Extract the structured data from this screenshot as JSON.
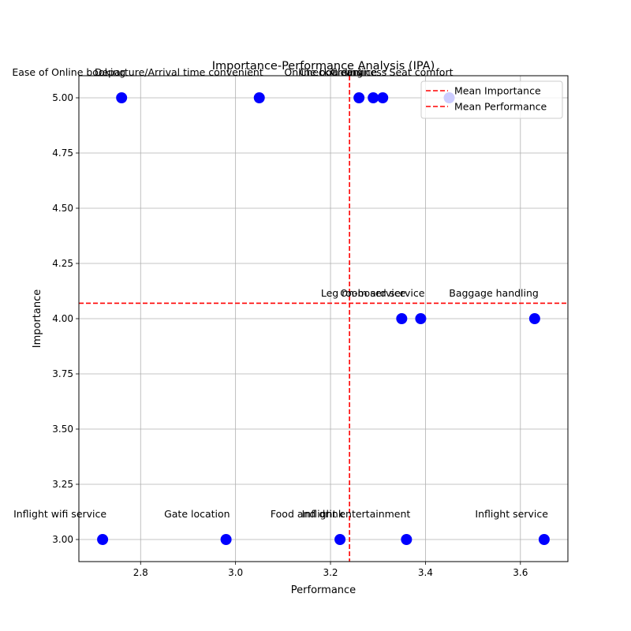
{
  "chart_data": {
    "type": "scatter",
    "title": "Importance-Performance Analysis (IPA)",
    "xlabel": "Performance",
    "ylabel": "Importance",
    "xlim": [
      2.67,
      3.7
    ],
    "ylim": [
      2.9,
      5.1
    ],
    "xticks": [
      2.8,
      3.0,
      3.2,
      3.4,
      3.6
    ],
    "yticks": [
      3.0,
      3.25,
      3.5,
      3.75,
      4.0,
      4.25,
      4.5,
      4.75,
      5.0
    ],
    "xtick_labels": [
      "2.8",
      "3.0",
      "3.2",
      "3.4",
      "3.6"
    ],
    "ytick_labels": [
      "3.00",
      "3.25",
      "3.50",
      "3.75",
      "4.00",
      "4.25",
      "4.50",
      "4.75",
      "5.00"
    ],
    "grid": true,
    "point_color": "#0000ff",
    "mean_line_color": "#ff0000",
    "mean_importance": 4.07,
    "mean_performance": 3.24,
    "legend": {
      "placement": "top-right",
      "entries": [
        "Mean Importance",
        "Mean Performance"
      ]
    },
    "points": [
      {
        "x": 2.76,
        "y": 5.0,
        "label": "Ease of Online booking"
      },
      {
        "x": 3.05,
        "y": 5.0,
        "label": "Departure/Arrival time convenient"
      },
      {
        "x": 3.26,
        "y": 5.0,
        "label": "Online boarding"
      },
      {
        "x": 3.29,
        "y": 5.0,
        "label": "Checkin service"
      },
      {
        "x": 3.31,
        "y": 5.0,
        "label": "Cleanliness"
      },
      {
        "x": 3.45,
        "y": 5.0,
        "label": "Seat comfort"
      },
      {
        "x": 3.35,
        "y": 4.0,
        "label": "Leg room service"
      },
      {
        "x": 3.39,
        "y": 4.0,
        "label": "On-board service"
      },
      {
        "x": 3.63,
        "y": 4.0,
        "label": "Baggage handling"
      },
      {
        "x": 2.72,
        "y": 3.0,
        "label": "Inflight wifi service"
      },
      {
        "x": 2.98,
        "y": 3.0,
        "label": "Gate location"
      },
      {
        "x": 3.22,
        "y": 3.0,
        "label": "Food and drink"
      },
      {
        "x": 3.36,
        "y": 3.0,
        "label": "Inflight entertainment"
      },
      {
        "x": 3.65,
        "y": 3.0,
        "label": "Inflight service"
      }
    ]
  }
}
